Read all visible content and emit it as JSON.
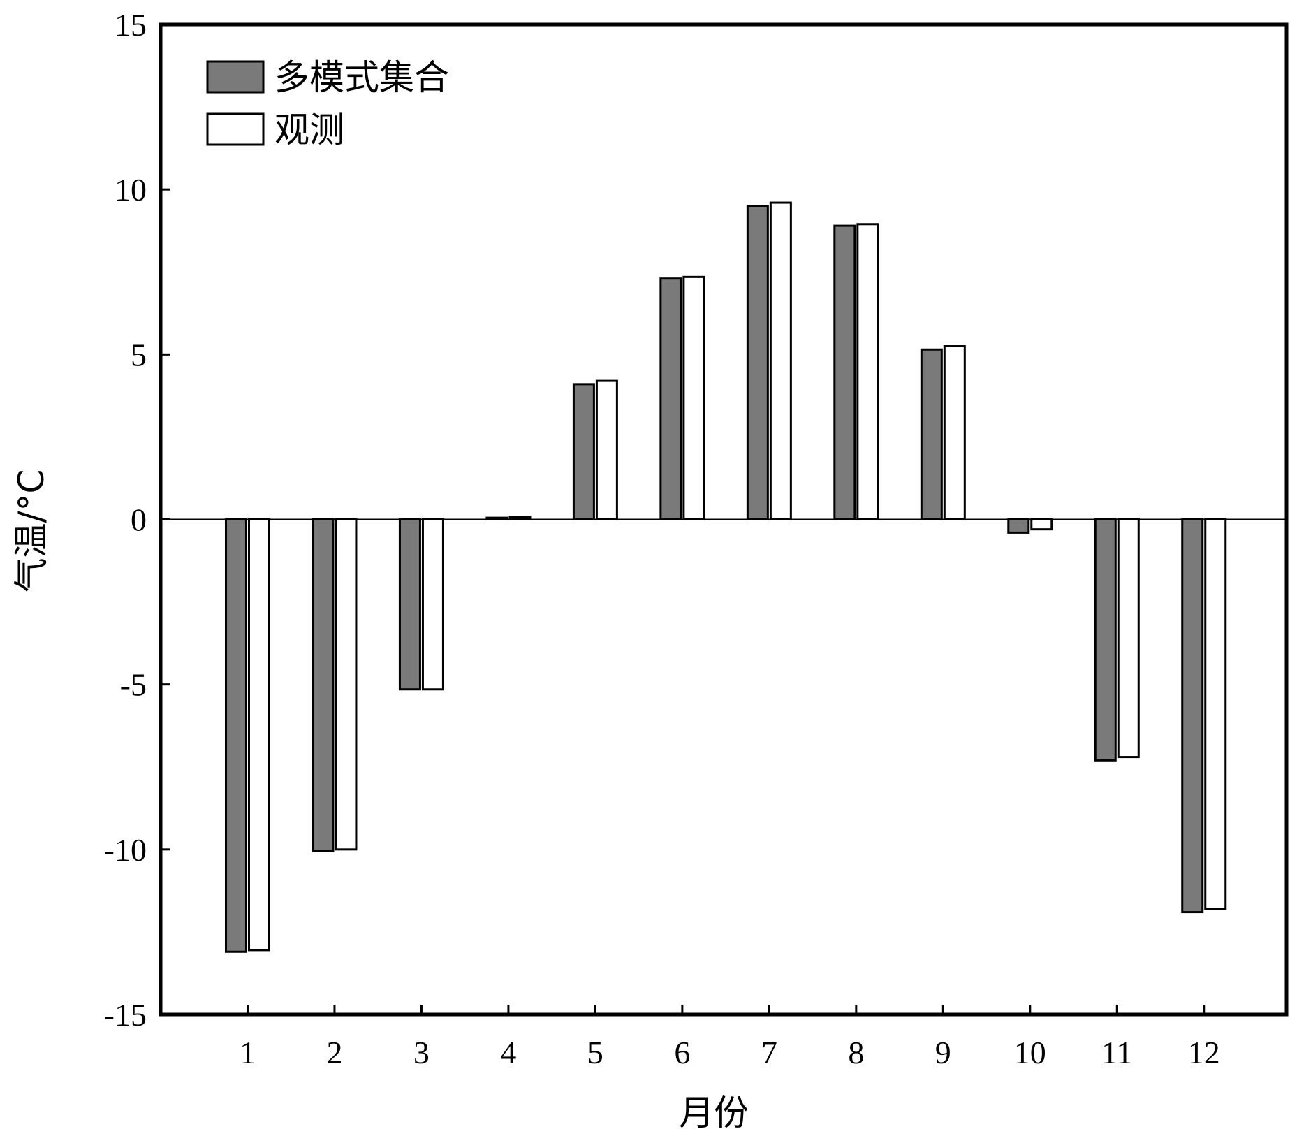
{
  "chart_data": {
    "type": "bar",
    "xlabel": "月份",
    "ylabel": "气温/°C",
    "categories": [
      "1",
      "2",
      "3",
      "4",
      "5",
      "6",
      "7",
      "8",
      "9",
      "10",
      "11",
      "12"
    ],
    "series": [
      {
        "name": "多模式集合",
        "color": "#7a7a7a",
        "values": [
          -13.1,
          -10.05,
          -5.15,
          0.05,
          4.1,
          7.3,
          9.5,
          8.9,
          5.15,
          -0.4,
          -7.3,
          -11.9
        ]
      },
      {
        "name": "观测",
        "color": "#ffffff",
        "values": [
          -13.05,
          -10.0,
          -5.15,
          0.08,
          4.2,
          7.35,
          9.6,
          8.95,
          5.25,
          -0.3,
          -7.2,
          -11.8
        ]
      }
    ],
    "ylim": [
      -15,
      15
    ],
    "yticks": [
      -15,
      -10,
      -5,
      0,
      5,
      10,
      15
    ],
    "grid": false,
    "legend_position": "top-left"
  }
}
